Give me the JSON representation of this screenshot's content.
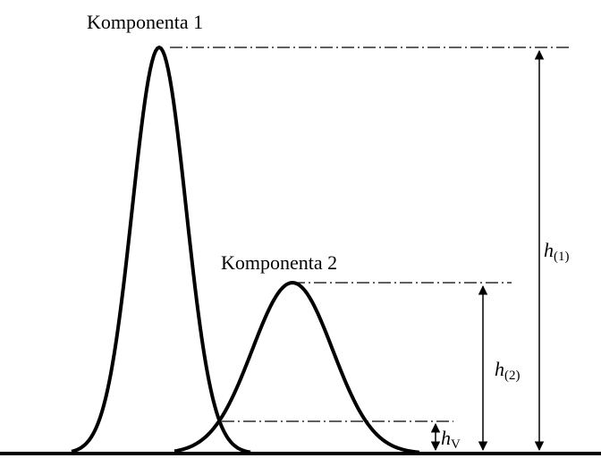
{
  "labels": {
    "component_1": "Komponenta 1",
    "component_2": "Komponenta 2",
    "h1": {
      "symbol": "h",
      "subscript": "(1)"
    },
    "h2": {
      "symbol": "h",
      "subscript": "(2)"
    },
    "hv": {
      "symbol": "h",
      "subscript": "V"
    }
  }
}
